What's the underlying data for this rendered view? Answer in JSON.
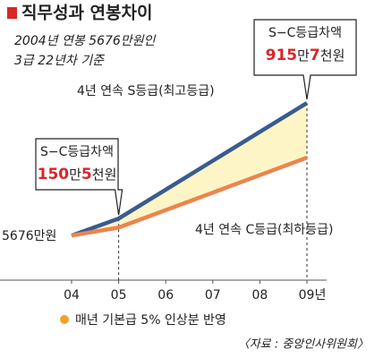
{
  "chart_data": {
    "type": "line",
    "title": "직무성과 연봉차이",
    "subtitle": [
      "2004년 연봉 5676만원인",
      "3급 22년차 기준"
    ],
    "categories": [
      "04",
      "05",
      "06",
      "07",
      "08",
      "09년"
    ],
    "series": [
      {
        "name": "4년 연속 S등급(최고등급)",
        "color": "#3b5b8e",
        "values": [
          5676,
          5960.5,
          6444.3,
          6928.1,
          7411.9,
          7895.7
        ]
      },
      {
        "name": "4년 연속 C등급(최하등급)",
        "color": "#ea8550",
        "values": [
          5676,
          5810,
          6102.5,
          6395,
          6687.5,
          6980
        ]
      }
    ],
    "ylim": [
      4750,
      9320
    ],
    "annotations": [
      {
        "text": "5676만원"
      },
      {
        "title": "S−C등급차액",
        "parts": [
          "150",
          "만",
          "5",
          "천원"
        ]
      },
      {
        "title": "S−C등급차액",
        "parts": [
          "915",
          "만",
          "7",
          "천원"
        ]
      }
    ],
    "note": "매년 기본급 5% 인상분 반영",
    "source": "〈자료 : 중앙인사위원회〉"
  }
}
